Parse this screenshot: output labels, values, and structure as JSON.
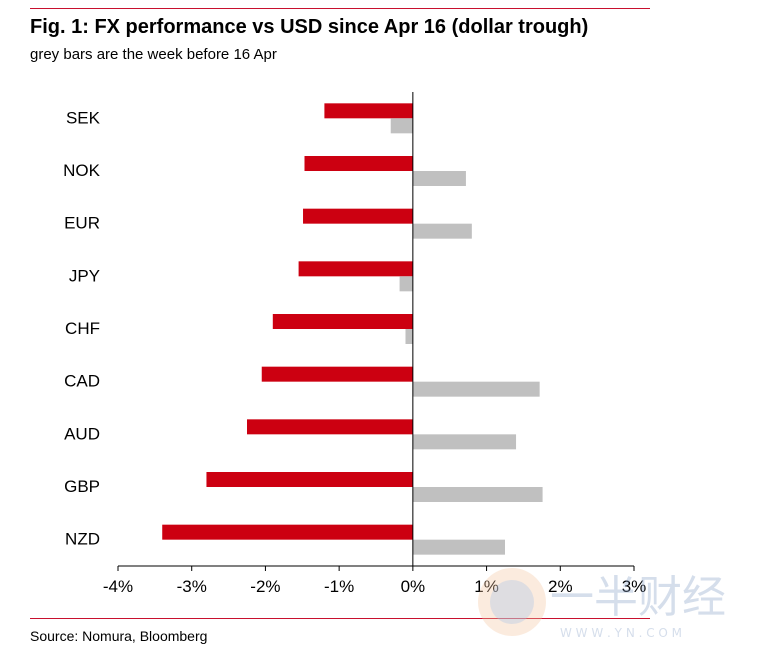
{
  "title": "Fig. 1: FX performance vs USD since Apr 16 (dollar trough)",
  "subtitle": "grey bars are the week before 16 Apr",
  "source": "Source: Nomura, Bloomberg",
  "watermark": {
    "text": "一半财经",
    "url": "W W W . Y N . C O M"
  },
  "colors": {
    "since_apr16": "#cc0011",
    "week_before": "#c0c0c0",
    "rule": "#c8102e"
  },
  "chart_data": {
    "type": "bar",
    "orientation": "horizontal",
    "categories": [
      "SEK",
      "NOK",
      "EUR",
      "JPY",
      "CHF",
      "CAD",
      "AUD",
      "GBP",
      "NZD"
    ],
    "series": [
      {
        "values": [
          -1.2,
          -1.47,
          -1.49,
          -1.55,
          -1.9,
          -2.05,
          -2.25,
          -2.8,
          -3.4
        ]
      },
      {
        "values": [
          -0.3,
          0.72,
          0.8,
          -0.18,
          -0.1,
          1.72,
          1.4,
          1.76,
          1.25
        ]
      }
    ],
    "xlim": [
      -4,
      3
    ],
    "xticks": [
      "-4%",
      "-3%",
      "-2%",
      "-1%",
      "0%",
      "1%",
      "2%",
      "3%"
    ],
    "xlabel": "",
    "ylabel": "",
    "grid": false,
    "legend": "none"
  }
}
